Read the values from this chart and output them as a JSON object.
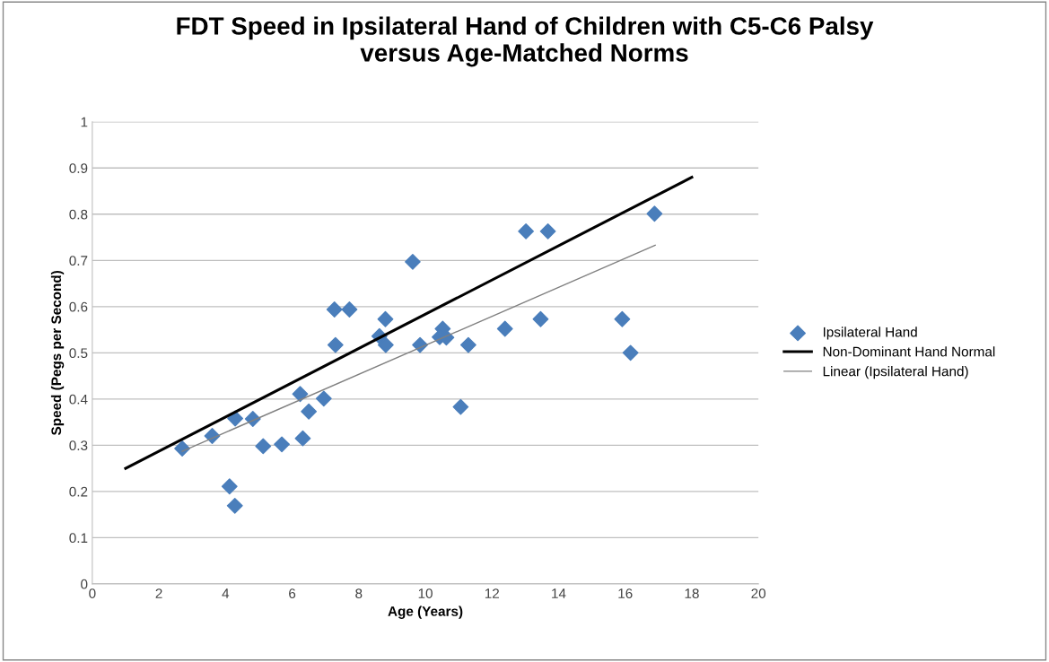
{
  "chart_data": {
    "type": "scatter",
    "title": "FDT Speed in Ipsilateral Hand of Children with C5-C6 Palsy\nversus Age-Matched Norms",
    "xlabel": "Age (Years)",
    "ylabel": "Speed (Pegs per Second)",
    "xlim": [
      0,
      20
    ],
    "xticks": [
      0,
      2,
      4,
      6,
      8,
      10,
      12,
      14,
      16,
      18,
      20
    ],
    "ylim": [
      0,
      1
    ],
    "yticks": [
      0,
      0.1,
      0.2,
      0.3,
      0.4,
      0.5,
      0.6,
      0.7,
      0.8,
      0.9,
      1
    ],
    "grid": "y",
    "legend": "right",
    "series": [
      {
        "name": "Ipsilateral Hand",
        "marker": "diamond",
        "color": "#4a7ebb",
        "x": [
          2.7,
          3.6,
          4.29,
          4.82,
          4.12,
          4.28,
          5.13,
          5.69,
          6.32,
          6.24,
          6.5,
          6.95,
          7.27,
          7.72,
          7.3,
          8.8,
          8.62,
          8.81,
          9.62,
          9.84,
          10.52,
          10.43,
          10.63,
          11.29,
          11.06,
          12.39,
          13.02,
          13.68,
          13.46,
          15.91,
          16.16,
          16.88
        ],
        "values": [
          0.293,
          0.32,
          0.358,
          0.357,
          0.211,
          0.169,
          0.298,
          0.302,
          0.315,
          0.411,
          0.373,
          0.401,
          0.594,
          0.594,
          0.517,
          0.573,
          0.536,
          0.517,
          0.697,
          0.517,
          0.552,
          0.534,
          0.533,
          0.517,
          0.383,
          0.552,
          0.763,
          0.763,
          0.573,
          0.573,
          0.5,
          0.801
        ]
      },
      {
        "name": "Non-Dominant Hand Normal",
        "type": "line",
        "color": "#000000",
        "x": [
          1,
          18
        ],
        "values": [
          0.25,
          0.88
        ]
      },
      {
        "name": "Linear (Ipsilateral Hand)",
        "type": "line",
        "color": "#808080",
        "x": [
          2.7,
          16.9
        ],
        "values": [
          0.287,
          0.733
        ]
      }
    ]
  }
}
